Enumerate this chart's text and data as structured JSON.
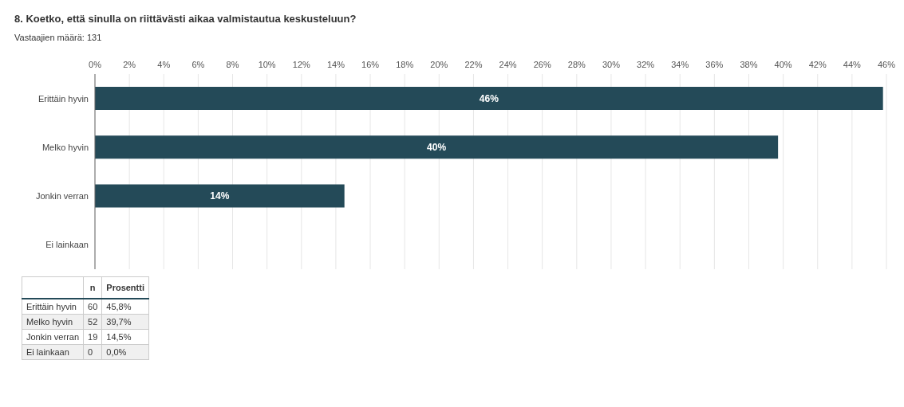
{
  "chart_data": [
    {
      "type": "bar",
      "orientation": "horizontal",
      "title": "8. Koetko, että sinulla on riittävästi aikaa valmistautua keskusteluun?",
      "subtitle": "Vastaajien määrä: 131",
      "categories": [
        "Erittäin hyvin",
        "Melko hyvin",
        "Jonkin verran",
        "Ei lainkaan"
      ],
      "values": [
        45.8,
        39.7,
        14.5,
        0
      ],
      "value_labels": [
        "46%",
        "40%",
        "14%",
        null
      ],
      "color": "#244a58",
      "xlim": [
        0,
        46
      ],
      "xticks": [
        {
          "value": 0,
          "label": "0%"
        },
        {
          "value": 2,
          "label": "2%"
        },
        {
          "value": 4,
          "label": "4%"
        },
        {
          "value": 6,
          "label": "6%"
        },
        {
          "value": 8,
          "label": "8%"
        },
        {
          "value": 10,
          "label": "10%"
        },
        {
          "value": 12,
          "label": "12%"
        },
        {
          "value": 14,
          "label": "14%"
        },
        {
          "value": 16,
          "label": "16%"
        },
        {
          "value": 18,
          "label": "18%"
        },
        {
          "value": 20,
          "label": "20%"
        },
        {
          "value": 22,
          "label": "22%"
        },
        {
          "value": 24,
          "label": "24%"
        },
        {
          "value": 26,
          "label": "26%"
        },
        {
          "value": 28,
          "label": "28%"
        },
        {
          "value": 30,
          "label": "30%"
        },
        {
          "value": 32,
          "label": "32%"
        },
        {
          "value": 34,
          "label": "34%"
        },
        {
          "value": 36,
          "label": "36%"
        },
        {
          "value": 38,
          "label": "38%"
        },
        {
          "value": 40,
          "label": "40%"
        },
        {
          "value": 42,
          "label": "42%"
        },
        {
          "value": 44,
          "label": "44%"
        },
        {
          "value": 46,
          "label": "46%"
        }
      ],
      "grid": "x"
    },
    {
      "type": "other",
      "categories": [
        "Erittäin hyvin",
        "Melko hyvin",
        "Jonkin verran",
        "Ei lainkaan"
      ],
      "data_labels": true,
      "series": [
        {
          "name": "n",
          "colors": [
            "#ffffff",
            "#f0f0f0",
            "#ffffff",
            "#f0f0f0"
          ],
          "values": [
            60,
            52,
            19,
            0
          ]
        },
        {
          "name": "Prosentti",
          "colors": [
            "#ffffff",
            "#f0f0f0",
            "#ffffff",
            "#f0f0f0"
          ],
          "values": [
            45.8,
            39.7,
            14.5,
            0
          ],
          "value_labels": [
            "45,8%",
            "39,7%",
            "14,5%",
            "0,0%"
          ]
        }
      ]
    }
  ]
}
